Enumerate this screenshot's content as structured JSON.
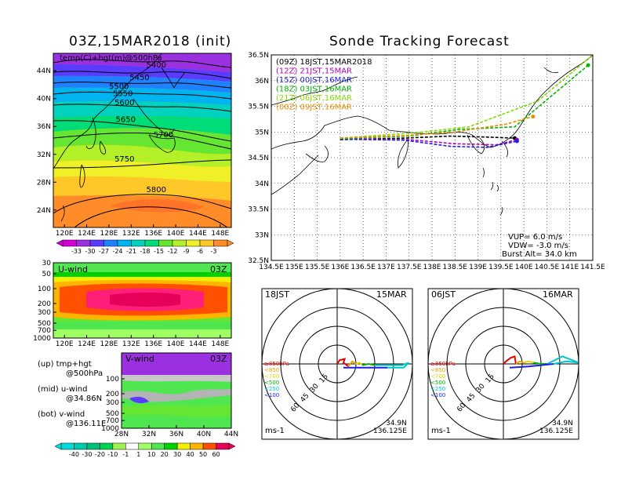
{
  "chart_data": [
    {
      "type": "heatmap",
      "title": "03Z,15MAR2018 (init)",
      "label": "temp(C)+hgt(m)@500hPa",
      "x_ticks": [
        "120E",
        "124E",
        "128E",
        "132E",
        "136E",
        "140E",
        "144E",
        "148E"
      ],
      "y_ticks": [
        "44N",
        "40N",
        "36N",
        "32N",
        "28N",
        "24N"
      ],
      "contours": [
        {
          "label": "5400",
          "x_lon": 136.5,
          "y_lat": 44.8
        },
        {
          "label": "5450",
          "x_lon": 133.5,
          "y_lat": 43.0
        },
        {
          "label": "5500",
          "x_lon": 129.8,
          "y_lat": 41.7
        },
        {
          "label": "5550",
          "x_lon": 130.5,
          "y_lat": 40.7
        },
        {
          "label": "5600",
          "x_lon": 130.8,
          "y_lat": 39.4
        },
        {
          "label": "5650",
          "x_lon": 131.0,
          "y_lat": 37.0
        },
        {
          "label": "5700",
          "x_lon": 137.8,
          "y_lat": 34.8
        },
        {
          "label": "5750",
          "x_lon": 130.8,
          "y_lat": 31.3
        },
        {
          "label": "5800",
          "x_lon": 136.5,
          "y_lat": 26.9
        }
      ],
      "colorbar": {
        "labels": [
          "-33",
          "-30",
          "-27",
          "-24",
          "-21",
          "-18",
          "-15",
          "-12",
          "-9",
          "-6",
          "-3"
        ],
        "colors": [
          "#d400d4",
          "#9b30e0",
          "#5a3cff",
          "#1e82ff",
          "#00b4f0",
          "#00d2be",
          "#00dc78",
          "#64e632",
          "#b4f028",
          "#f0f028",
          "#ffc828",
          "#ff8c28"
        ]
      }
    },
    {
      "type": "heatmap",
      "label": "U-wind",
      "time": "03Z",
      "x_ticks": [
        "120E",
        "124E",
        "128E",
        "132E",
        "136E",
        "140E",
        "144E",
        "148E"
      ],
      "y_ticks": [
        "30",
        "50",
        "100",
        "200",
        "300",
        "500",
        "700",
        "1000"
      ]
    },
    {
      "type": "heatmap",
      "label": "V-wind",
      "time": "03Z",
      "x_ticks": [
        "28N",
        "32N",
        "36N",
        "40N",
        "44N"
      ],
      "y_ticks": [
        "100",
        "200",
        "300",
        "500",
        "700",
        "1000"
      ],
      "colorbar": {
        "labels": [
          "-40",
          "-30",
          "-20",
          "-10",
          "-1",
          "1",
          "10",
          "20",
          "30",
          "40",
          "50",
          "60"
        ],
        "colors": [
          "#00dcdc",
          "#00c8aa",
          "#00be78",
          "#00d250",
          "#a0f050",
          "#ffffff",
          "#a0ff64",
          "#50e650",
          "#00d200",
          "#f0f000",
          "#ffb400",
          "#ff5000",
          "#e6005a"
        ]
      }
    },
    {
      "type": "line",
      "title": "Sonde Tracking Forecast",
      "x_ticks": [
        "134.5E",
        "135E",
        "135.5E",
        "136E",
        "136.5E",
        "137E",
        "137.5E",
        "138E",
        "138.5E",
        "139E",
        "139.5E",
        "140E",
        "140.5E",
        "141E",
        "141.5E"
      ],
      "y_ticks": [
        "36.5N",
        "36N",
        "35.5N",
        "35N",
        "34.5N",
        "34N",
        "33.5N",
        "33N",
        "32.5N"
      ],
      "xlim": [
        134.5,
        141.5
      ],
      "ylim": [
        32.5,
        36.5
      ],
      "series": [
        {
          "name": "(09Z) 18JST,15MAR2018",
          "color": "#000000",
          "points": [
            [
              136.0,
              34.85
            ],
            [
              137.4,
              34.88
            ],
            [
              138.4,
              34.92
            ],
            [
              139.2,
              34.9
            ],
            [
              139.8,
              34.88
            ]
          ]
        },
        {
          "name": "(12Z) 21JST,15MAR",
          "color": "#b400b4",
          "points": [
            [
              136.0,
              34.87
            ],
            [
              137.5,
              34.85
            ],
            [
              138.5,
              34.77
            ],
            [
              139.4,
              34.75
            ],
            [
              139.85,
              34.85
            ]
          ]
        },
        {
          "name": "(15Z) 00JST,16MAR",
          "color": "#1e1ee6",
          "points": [
            [
              136.0,
              34.86
            ],
            [
              137.4,
              34.84
            ],
            [
              138.4,
              34.72
            ],
            [
              139.2,
              34.7
            ],
            [
              139.85,
              34.82
            ]
          ]
        },
        {
          "name": "(18Z) 03JST,16MAR",
          "color": "#00b400",
          "points": [
            [
              136.0,
              34.87
            ],
            [
              137.5,
              34.92
            ],
            [
              138.6,
              35.05
            ],
            [
              139.8,
              35.1
            ],
            [
              141.4,
              36.3
            ]
          ]
        },
        {
          "name": "(21Z) 06JST,16MAR",
          "color": "#82dc00",
          "points": [
            [
              136.0,
              34.88
            ],
            [
              137.6,
              34.98
            ],
            [
              138.8,
              35.1
            ],
            [
              140.3,
              35.6
            ],
            [
              141.5,
              36.5
            ]
          ]
        },
        {
          "name": "(00Z) 09JST,16MAR",
          "color": "#f08c00",
          "points": [
            [
              136.0,
              34.88
            ],
            [
              137.4,
              34.93
            ],
            [
              138.5,
              35.0
            ],
            [
              139.6,
              35.15
            ],
            [
              140.2,
              35.3
            ]
          ]
        }
      ],
      "info": {
        "vup": "VUP=  6.0  m/s",
        "vdw": "VDW=  -3.0  m/s",
        "burst": "Burst Alt=  34.0  km"
      }
    },
    {
      "type": "line",
      "label_left": "18JST",
      "label_right": "15MAR",
      "unit": "ms-1",
      "location": [
        "34.9N",
        "136.125E"
      ],
      "rings": [
        "15",
        "30",
        "45",
        "60"
      ],
      "legend": [
        {
          "label": "≥850hPa",
          "color": "#e60000"
        },
        {
          "label": "<850",
          "color": "#f0a000"
        },
        {
          "label": "<700",
          "color": "#dcdc00"
        },
        {
          "label": "<500",
          "color": "#00b400"
        },
        {
          "label": "<250",
          "color": "#00c8c8"
        },
        {
          "label": "<100",
          "color": "#1e1ee6"
        }
      ],
      "trace": [
        {
          "color": "#e60000",
          "pts": [
            [
              0,
              0
            ],
            [
              2,
              3
            ],
            [
              6,
              4
            ],
            [
              5,
              1
            ],
            [
              9,
              -2
            ]
          ]
        },
        {
          "color": "#f0a000",
          "pts": [
            [
              9,
              -2
            ],
            [
              12,
              2
            ],
            [
              15,
              0
            ]
          ]
        },
        {
          "color": "#dcdc00",
          "pts": [
            [
              15,
              0
            ],
            [
              18,
              1
            ],
            [
              20,
              -1
            ]
          ]
        },
        {
          "color": "#00b400",
          "pts": [
            [
              20,
              -1
            ],
            [
              25,
              0
            ],
            [
              30,
              -1
            ]
          ]
        },
        {
          "color": "#00c8c8",
          "pts": [
            [
              30,
              -1
            ],
            [
              45,
              -1
            ],
            [
              52,
              -1
            ],
            [
              57,
              1
            ],
            [
              53,
              -3
            ],
            [
              40,
              -3
            ]
          ]
        },
        {
          "color": "#1e1ee6",
          "pts": [
            [
              40,
              -3
            ],
            [
              20,
              -3
            ],
            [
              5,
              -3
            ]
          ]
        }
      ]
    },
    {
      "type": "line",
      "label_left": "06JST",
      "label_right": "16MAR",
      "unit": "ms-1",
      "location": [
        "34.9N",
        "136.125E"
      ],
      "rings": [
        "15",
        "30",
        "45",
        "60"
      ],
      "legend": [
        {
          "label": "≥850hPa",
          "color": "#e60000"
        },
        {
          "label": "<850",
          "color": "#f0a000"
        },
        {
          "label": "<700",
          "color": "#dcdc00"
        },
        {
          "label": "<500",
          "color": "#00b400"
        },
        {
          "label": "<250",
          "color": "#00c8c8"
        },
        {
          "label": "<100",
          "color": "#1e1ee6"
        }
      ],
      "trace": [
        {
          "color": "#e60000",
          "pts": [
            [
              0,
              0
            ],
            [
              2,
              2
            ],
            [
              6,
              5
            ],
            [
              9,
              6
            ],
            [
              10,
              0
            ]
          ]
        },
        {
          "color": "#f0a000",
          "pts": [
            [
              10,
              0
            ],
            [
              13,
              2
            ],
            [
              16,
              1
            ]
          ]
        },
        {
          "color": "#dcdc00",
          "pts": [
            [
              16,
              1
            ],
            [
              20,
              2
            ],
            [
              24,
              1
            ]
          ]
        },
        {
          "color": "#00b400",
          "pts": [
            [
              24,
              1
            ],
            [
              30,
              0
            ],
            [
              35,
              0
            ]
          ]
        },
        {
          "color": "#00c8c8",
          "pts": [
            [
              35,
              0
            ],
            [
              47,
              6
            ],
            [
              55,
              3
            ],
            [
              60,
              1
            ],
            [
              50,
              2
            ],
            [
              40,
              0
            ]
          ]
        },
        {
          "color": "#1e1ee6",
          "pts": [
            [
              40,
              0
            ],
            [
              20,
              -2
            ],
            [
              5,
              -3
            ]
          ]
        }
      ]
    }
  ],
  "side_legend": {
    "up1": "(up)  tmp+hgt",
    "up2": "@500hPa",
    "mid1": "(mid)  u-wind",
    "mid2": "@34.86N",
    "bot1": "(bot)  v-wind",
    "bot2": "@136.11E"
  }
}
